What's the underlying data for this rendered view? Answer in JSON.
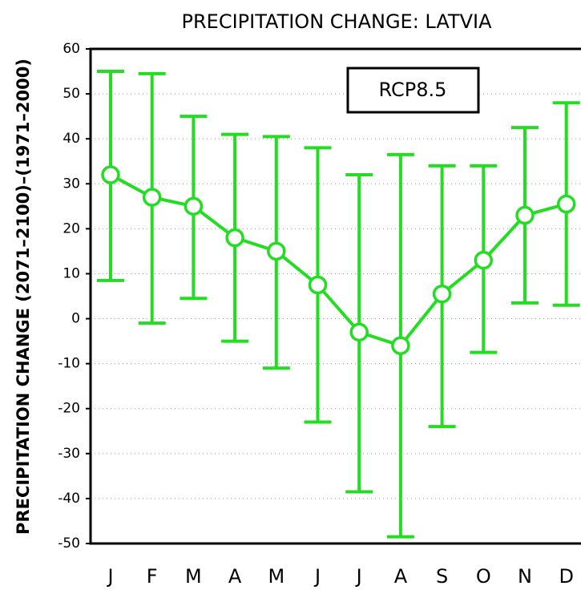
{
  "chart_data": {
    "type": "line",
    "title": "PRECIPITATION CHANGE: LATVIA",
    "y_label": "PRECIPITATION CHANGE (2071–2100)–(1971–2000)",
    "annotation": "RCP8.5",
    "categories": [
      "J",
      "F",
      "M",
      "A",
      "M",
      "J",
      "J",
      "A",
      "S",
      "O",
      "N",
      "D"
    ],
    "series": [
      {
        "color": "#22dd22",
        "values": [
          32,
          27,
          25,
          18,
          15,
          7.5,
          -3,
          -6,
          5.5,
          13,
          23,
          25.5
        ],
        "upper": [
          55,
          54.5,
          45,
          41,
          40.5,
          38,
          32,
          36.5,
          34,
          34,
          42.5,
          48
        ],
        "lower": [
          8.5,
          -1,
          4.5,
          -5,
          -11,
          -23,
          -38.5,
          -48.5,
          -24,
          -7.5,
          3.5,
          3
        ]
      }
    ],
    "ylim": [
      -50,
      60
    ],
    "yticks": [
      -50,
      -40,
      -30,
      -20,
      -10,
      0,
      10,
      20,
      30,
      40,
      50,
      60
    ],
    "grid": true
  }
}
